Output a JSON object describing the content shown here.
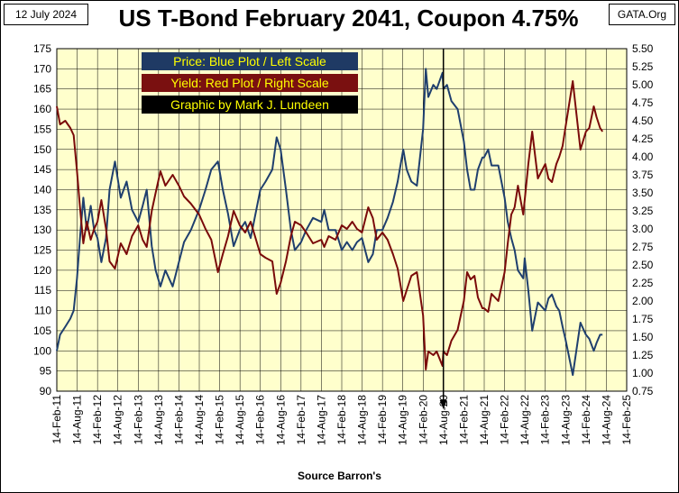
{
  "header": {
    "date": "12 July 2024",
    "title": "US T-Bond February 2041, Coupon 4.75%",
    "site": "GATA.Org"
  },
  "legend": {
    "price": "Price:  Blue Plot / Left Scale",
    "yield": "Yield:  Red Plot / Right Scale",
    "credit": "Graphic by Mark J. Lundeen"
  },
  "source": "Source Barron's",
  "colors": {
    "plot_bg": "#ffffcc",
    "grid": "#000000",
    "price": "#1f3f6e",
    "yield": "#7a0a0a",
    "legend_price_bg": "#1f3a64",
    "legend_price_fg": "#ffff00",
    "legend_yield_bg": "#7a1010",
    "legend_yield_fg": "#ffff00",
    "legend_credit_bg": "#000000",
    "legend_credit_fg": "#ffff00"
  },
  "chart_data": {
    "type": "line",
    "title": "US T-Bond February 2041, Coupon 4.75%",
    "xlabel": "Source Barron's",
    "x_tick_labels": [
      "14-Feb-11",
      "14-Aug-11",
      "14-Feb-12",
      "14-Aug-12",
      "14-Feb-13",
      "14-Aug-13",
      "14-Feb-14",
      "14-Aug-14",
      "14-Feb-15",
      "14-Aug-15",
      "14-Feb-16",
      "14-Aug-16",
      "14-Feb-17",
      "14-Aug-17",
      "14-Feb-18",
      "14-Aug-18",
      "14-Feb-19",
      "14-Aug-19",
      "14-Feb-20",
      "14-Aug-20",
      "14-Feb-21",
      "14-Aug-21",
      "14-Feb-22",
      "14-Aug-22",
      "14-Feb-23",
      "14-Aug-23",
      "14-Feb-24",
      "14-Aug-24",
      "14-Feb-25"
    ],
    "x_range": [
      "2011-02-14",
      "2025-02-14"
    ],
    "left_axis": {
      "ylim": [
        90,
        175
      ],
      "ticks": [
        90,
        95,
        100,
        105,
        110,
        115,
        120,
        125,
        130,
        135,
        140,
        145,
        150,
        155,
        160,
        165,
        170,
        175
      ]
    },
    "right_axis": {
      "ylim": [
        0.75,
        5.5
      ],
      "ticks": [
        "0.75",
        "1.00",
        "1.25",
        "1.50",
        "1.75",
        "2.00",
        "2.25",
        "2.50",
        "2.75",
        "3.00",
        "3.25",
        "3.50",
        "3.75",
        "4.00",
        "4.25",
        "4.50",
        "4.75",
        "5.00",
        "5.25",
        "5.50"
      ]
    },
    "marker": {
      "x": "2020-08-14",
      "type": "vertical-arrow"
    },
    "grid": true,
    "series": [
      {
        "name": "Price",
        "axis": "left",
        "points": [
          [
            "2011-02-14",
            100
          ],
          [
            "2011-03-15",
            104
          ],
          [
            "2011-05-01",
            106
          ],
          [
            "2011-06-15",
            108
          ],
          [
            "2011-07-15",
            110
          ],
          [
            "2011-08-14",
            118
          ],
          [
            "2011-09-10",
            128
          ],
          [
            "2011-10-10",
            138
          ],
          [
            "2011-11-10",
            130
          ],
          [
            "2011-12-15",
            136
          ],
          [
            "2012-01-15",
            130
          ],
          [
            "2012-02-14",
            128
          ],
          [
            "2012-03-20",
            122
          ],
          [
            "2012-05-01",
            128
          ],
          [
            "2012-06-01",
            140
          ],
          [
            "2012-07-20",
            147
          ],
          [
            "2012-09-10",
            138
          ],
          [
            "2012-11-01",
            142
          ],
          [
            "2012-12-20",
            135
          ],
          [
            "2013-02-14",
            132
          ],
          [
            "2013-03-25",
            136
          ],
          [
            "2013-05-01",
            140
          ],
          [
            "2013-06-15",
            126
          ],
          [
            "2013-07-20",
            120
          ],
          [
            "2013-09-01",
            116
          ],
          [
            "2013-10-15",
            120
          ],
          [
            "2013-12-20",
            116
          ],
          [
            "2014-02-14",
            122
          ],
          [
            "2014-04-01",
            127
          ],
          [
            "2014-06-01",
            130
          ],
          [
            "2014-08-14",
            135
          ],
          [
            "2014-10-10",
            140
          ],
          [
            "2014-12-01",
            145
          ],
          [
            "2015-01-30",
            147
          ],
          [
            "2015-03-15",
            140
          ],
          [
            "2015-05-01",
            134
          ],
          [
            "2015-06-20",
            126
          ],
          [
            "2015-08-14",
            130
          ],
          [
            "2015-10-01",
            132
          ],
          [
            "2015-11-20",
            128
          ],
          [
            "2016-02-14",
            140
          ],
          [
            "2016-04-01",
            142
          ],
          [
            "2016-06-01",
            145
          ],
          [
            "2016-07-10",
            153
          ],
          [
            "2016-08-14",
            150
          ],
          [
            "2016-10-01",
            140
          ],
          [
            "2016-11-15",
            130
          ],
          [
            "2016-12-20",
            125
          ],
          [
            "2017-02-14",
            127
          ],
          [
            "2017-04-01",
            130
          ],
          [
            "2017-06-01",
            133
          ],
          [
            "2017-08-14",
            132
          ],
          [
            "2017-09-10",
            135
          ],
          [
            "2017-10-20",
            130
          ],
          [
            "2017-12-20",
            130
          ],
          [
            "2018-02-14",
            125
          ],
          [
            "2018-04-01",
            127
          ],
          [
            "2018-05-20",
            125
          ],
          [
            "2018-07-01",
            127
          ],
          [
            "2018-08-14",
            128
          ],
          [
            "2018-10-10",
            122
          ],
          [
            "2018-11-20",
            124
          ],
          [
            "2018-12-25",
            130
          ],
          [
            "2019-02-14",
            130
          ],
          [
            "2019-04-01",
            133
          ],
          [
            "2019-05-20",
            137
          ],
          [
            "2019-07-01",
            142
          ],
          [
            "2019-08-20",
            150
          ],
          [
            "2019-09-20",
            145
          ],
          [
            "2019-11-01",
            142
          ],
          [
            "2019-12-20",
            141
          ],
          [
            "2020-02-14",
            155
          ],
          [
            "2020-03-09",
            170
          ],
          [
            "2020-04-01",
            163
          ],
          [
            "2020-05-15",
            166
          ],
          [
            "2020-06-15",
            165
          ],
          [
            "2020-08-06",
            169
          ],
          [
            "2020-08-14",
            165
          ],
          [
            "2020-09-15",
            166
          ],
          [
            "2020-10-25",
            162
          ],
          [
            "2020-12-20",
            160
          ],
          [
            "2021-02-14",
            152
          ],
          [
            "2021-03-15",
            145
          ],
          [
            "2021-04-15",
            140
          ],
          [
            "2021-05-20",
            140
          ],
          [
            "2021-06-20",
            145
          ],
          [
            "2021-07-30",
            148
          ],
          [
            "2021-08-14",
            148
          ],
          [
            "2021-09-20",
            150
          ],
          [
            "2021-10-20",
            146
          ],
          [
            "2021-12-20",
            146
          ],
          [
            "2022-02-14",
            138
          ],
          [
            "2022-03-15",
            132
          ],
          [
            "2022-04-15",
            128
          ],
          [
            "2022-05-15",
            125
          ],
          [
            "2022-06-14",
            120
          ],
          [
            "2022-08-01",
            118
          ],
          [
            "2022-08-14",
            123
          ],
          [
            "2022-09-15",
            115
          ],
          [
            "2022-10-20",
            105
          ],
          [
            "2022-12-10",
            112
          ],
          [
            "2023-02-14",
            110
          ],
          [
            "2023-03-15",
            113
          ],
          [
            "2023-04-15",
            114
          ],
          [
            "2023-05-25",
            111
          ],
          [
            "2023-06-20",
            110
          ],
          [
            "2023-07-20",
            106
          ],
          [
            "2023-08-14",
            103
          ],
          [
            "2023-10-19",
            94
          ],
          [
            "2023-12-27",
            107
          ],
          [
            "2024-02-14",
            104
          ],
          [
            "2024-03-15",
            103
          ],
          [
            "2024-04-25",
            100
          ],
          [
            "2024-05-20",
            102
          ],
          [
            "2024-06-20",
            104
          ],
          [
            "2024-07-12",
            104
          ]
        ]
      },
      {
        "name": "Yield",
        "axis": "right",
        "points": [
          [
            "2011-02-14",
            4.7
          ],
          [
            "2011-03-15",
            4.45
          ],
          [
            "2011-05-01",
            4.5
          ],
          [
            "2011-06-15",
            4.4
          ],
          [
            "2011-07-15",
            4.3
          ],
          [
            "2011-08-14",
            3.8
          ],
          [
            "2011-09-10",
            3.3
          ],
          [
            "2011-10-10",
            2.8
          ],
          [
            "2011-11-10",
            3.1
          ],
          [
            "2011-12-15",
            2.85
          ],
          [
            "2012-01-15",
            3.0
          ],
          [
            "2012-02-14",
            3.1
          ],
          [
            "2012-03-20",
            3.4
          ],
          [
            "2012-05-01",
            3.0
          ],
          [
            "2012-06-01",
            2.55
          ],
          [
            "2012-07-20",
            2.45
          ],
          [
            "2012-09-10",
            2.8
          ],
          [
            "2012-11-01",
            2.65
          ],
          [
            "2012-12-20",
            2.9
          ],
          [
            "2013-02-14",
            3.05
          ],
          [
            "2013-03-25",
            2.85
          ],
          [
            "2013-05-01",
            2.75
          ],
          [
            "2013-06-15",
            3.25
          ],
          [
            "2013-07-20",
            3.5
          ],
          [
            "2013-09-01",
            3.8
          ],
          [
            "2013-10-15",
            3.6
          ],
          [
            "2013-12-20",
            3.75
          ],
          [
            "2014-02-14",
            3.6
          ],
          [
            "2014-04-01",
            3.45
          ],
          [
            "2014-06-01",
            3.35
          ],
          [
            "2014-08-14",
            3.2
          ],
          [
            "2014-10-10",
            3.0
          ],
          [
            "2014-12-01",
            2.85
          ],
          [
            "2015-01-30",
            2.4
          ],
          [
            "2015-03-15",
            2.65
          ],
          [
            "2015-05-01",
            2.9
          ],
          [
            "2015-06-20",
            3.25
          ],
          [
            "2015-08-14",
            3.05
          ],
          [
            "2015-10-01",
            2.95
          ],
          [
            "2015-11-20",
            3.1
          ],
          [
            "2016-02-14",
            2.65
          ],
          [
            "2016-04-01",
            2.6
          ],
          [
            "2016-06-01",
            2.55
          ],
          [
            "2016-07-10",
            2.1
          ],
          [
            "2016-08-14",
            2.25
          ],
          [
            "2016-10-01",
            2.55
          ],
          [
            "2016-11-15",
            2.9
          ],
          [
            "2016-12-20",
            3.1
          ],
          [
            "2017-02-14",
            3.05
          ],
          [
            "2017-04-01",
            2.95
          ],
          [
            "2017-06-01",
            2.8
          ],
          [
            "2017-08-14",
            2.85
          ],
          [
            "2017-09-10",
            2.75
          ],
          [
            "2017-10-20",
            2.9
          ],
          [
            "2017-12-20",
            2.85
          ],
          [
            "2018-02-14",
            3.05
          ],
          [
            "2018-04-01",
            3.0
          ],
          [
            "2018-05-20",
            3.1
          ],
          [
            "2018-07-01",
            3.0
          ],
          [
            "2018-08-14",
            2.95
          ],
          [
            "2018-10-10",
            3.3
          ],
          [
            "2018-11-20",
            3.15
          ],
          [
            "2018-12-25",
            2.85
          ],
          [
            "2019-02-14",
            2.95
          ],
          [
            "2019-04-01",
            2.85
          ],
          [
            "2019-05-20",
            2.65
          ],
          [
            "2019-07-01",
            2.45
          ],
          [
            "2019-08-20",
            2.0
          ],
          [
            "2019-09-20",
            2.15
          ],
          [
            "2019-11-01",
            2.35
          ],
          [
            "2019-12-20",
            2.4
          ],
          [
            "2020-02-14",
            1.8
          ],
          [
            "2020-03-09",
            1.05
          ],
          [
            "2020-04-01",
            1.3
          ],
          [
            "2020-05-15",
            1.25
          ],
          [
            "2020-06-15",
            1.3
          ],
          [
            "2020-08-06",
            1.1
          ],
          [
            "2020-08-14",
            1.3
          ],
          [
            "2020-09-15",
            1.25
          ],
          [
            "2020-10-25",
            1.45
          ],
          [
            "2020-12-20",
            1.6
          ],
          [
            "2021-02-14",
            2.0
          ],
          [
            "2021-03-15",
            2.4
          ],
          [
            "2021-04-15",
            2.3
          ],
          [
            "2021-05-20",
            2.35
          ],
          [
            "2021-06-20",
            2.05
          ],
          [
            "2021-07-30",
            1.9
          ],
          [
            "2021-08-14",
            1.9
          ],
          [
            "2021-09-20",
            1.85
          ],
          [
            "2021-10-20",
            2.1
          ],
          [
            "2021-12-20",
            2.0
          ],
          [
            "2022-02-14",
            2.4
          ],
          [
            "2022-03-15",
            2.8
          ],
          [
            "2022-04-15",
            3.2
          ],
          [
            "2022-05-15",
            3.3
          ],
          [
            "2022-06-14",
            3.6
          ],
          [
            "2022-08-01",
            3.2
          ],
          [
            "2022-08-14",
            3.4
          ],
          [
            "2022-09-15",
            3.9
          ],
          [
            "2022-10-20",
            4.35
          ],
          [
            "2022-12-10",
            3.7
          ],
          [
            "2023-02-14",
            3.9
          ],
          [
            "2023-03-15",
            3.7
          ],
          [
            "2023-04-15",
            3.65
          ],
          [
            "2023-05-25",
            3.9
          ],
          [
            "2023-06-20",
            4.0
          ],
          [
            "2023-07-20",
            4.15
          ],
          [
            "2023-08-14",
            4.4
          ],
          [
            "2023-10-19",
            5.05
          ],
          [
            "2023-12-27",
            4.1
          ],
          [
            "2024-02-14",
            4.35
          ],
          [
            "2024-03-15",
            4.4
          ],
          [
            "2024-04-25",
            4.7
          ],
          [
            "2024-05-20",
            4.55
          ],
          [
            "2024-06-20",
            4.4
          ],
          [
            "2024-07-12",
            4.35
          ]
        ]
      }
    ]
  }
}
